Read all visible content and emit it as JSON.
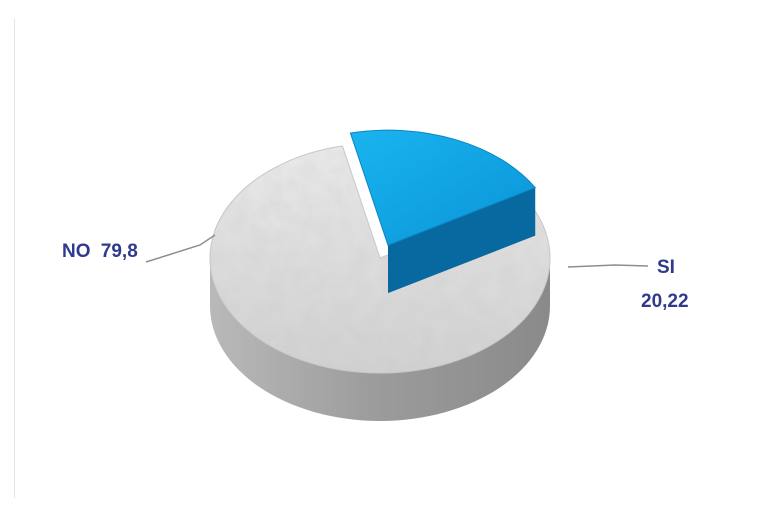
{
  "chart_data": {
    "type": "pie",
    "title": "",
    "slices": [
      {
        "label": "NO",
        "value": 79.8,
        "value_text": "79,8",
        "color": "#d8d8d8"
      },
      {
        "label": "SI",
        "value": 20.22,
        "value_text": "20,22",
        "color": "#11a6e6"
      }
    ],
    "style": "3d-exploded",
    "legend": "none"
  }
}
